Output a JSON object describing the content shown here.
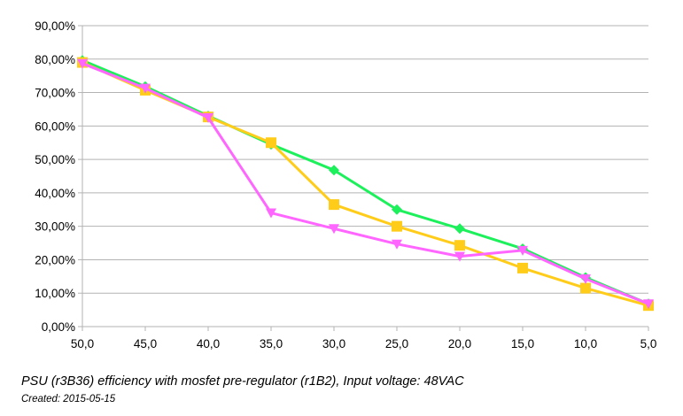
{
  "chart_data": {
    "type": "line",
    "title": "",
    "xlabel": "",
    "ylabel": "",
    "x": [
      50,
      45,
      40,
      35,
      30,
      25,
      20,
      15,
      10,
      5
    ],
    "x_tick_labels": [
      "50,0",
      "45,0",
      "40,0",
      "35,0",
      "30,0",
      "25,0",
      "20,0",
      "15,0",
      "10,0",
      "5,0"
    ],
    "y_tick_labels": [
      "0,00%",
      "10,00%",
      "20,00%",
      "30,00%",
      "40,00%",
      "50,00%",
      "60,00%",
      "70,00%",
      "80,00%",
      "90,00%"
    ],
    "ylim": [
      0,
      0.9
    ],
    "y_format": "percent",
    "x_reversed": true,
    "grid": "horizontal",
    "legend": "none",
    "series": [
      {
        "color": "#1cf05a",
        "marker": "diamond",
        "values": [
          0.796,
          0.718,
          0.63,
          0.545,
          0.468,
          0.35,
          0.293,
          0.233,
          0.147,
          0.068
        ]
      },
      {
        "color": "#ffcc1a",
        "marker": "square",
        "values": [
          0.79,
          0.707,
          0.627,
          0.55,
          0.365,
          0.3,
          0.243,
          0.175,
          0.115,
          0.063
        ]
      },
      {
        "color": "#ff66ff",
        "marker": "triangle-down",
        "values": [
          0.787,
          0.713,
          0.625,
          0.34,
          0.293,
          0.247,
          0.21,
          0.228,
          0.143,
          0.068
        ]
      }
    ]
  },
  "caption": "PSU (r3B36) efficiency with mosfet pre-regulator (r1B2), Input voltage: 48VAC",
  "created": "Created: 2015-05-15"
}
